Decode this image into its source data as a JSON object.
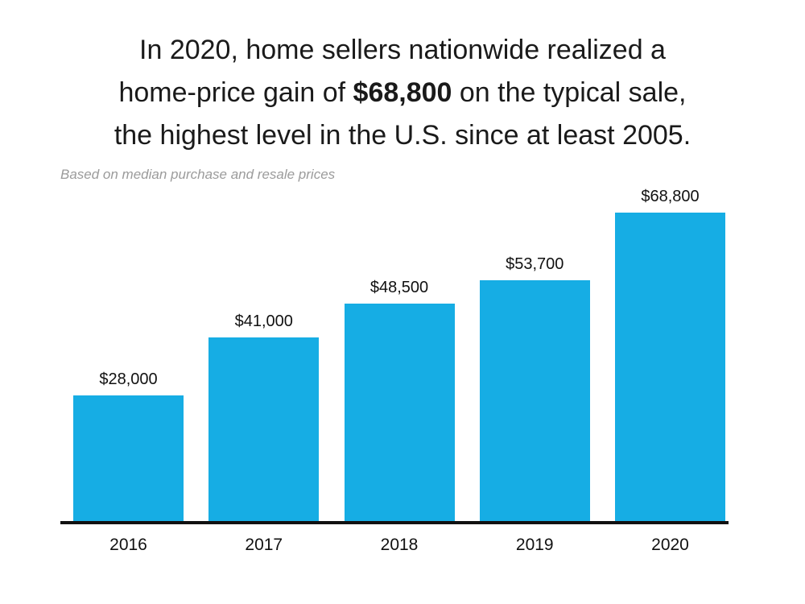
{
  "header": {
    "title_lines": [
      {
        "pre": "In 2020, home sellers nationwide realized a",
        "bold": "",
        "post": ""
      },
      {
        "pre": "home-price gain of ",
        "bold": "$68,800",
        "post": " on the typical sale,"
      },
      {
        "pre": "the highest level in the U.S. since at least 2005.",
        "bold": "",
        "post": ""
      }
    ],
    "subtitle": "Based on median purchase and resale prices"
  },
  "chart_data": {
    "type": "bar",
    "title": "In 2020, home sellers nationwide realized a home-price gain of $68,800 on the typical sale, the highest level in the U.S. since at least 2005.",
    "subtitle": "Based on median purchase and resale prices",
    "categories": [
      "2016",
      "2017",
      "2018",
      "2019",
      "2020"
    ],
    "values": [
      28000,
      41000,
      48500,
      53700,
      68800
    ],
    "value_labels": [
      "$28,000",
      "$41,000",
      "$48,500",
      "$53,700",
      "$68,800"
    ],
    "xlabel": "",
    "ylabel": "",
    "ylim": [
      0,
      68800
    ],
    "grid": false,
    "legend": "none",
    "bar_color": "#16ade4",
    "axis_line_color": "#111111",
    "label_color": "#111111"
  }
}
